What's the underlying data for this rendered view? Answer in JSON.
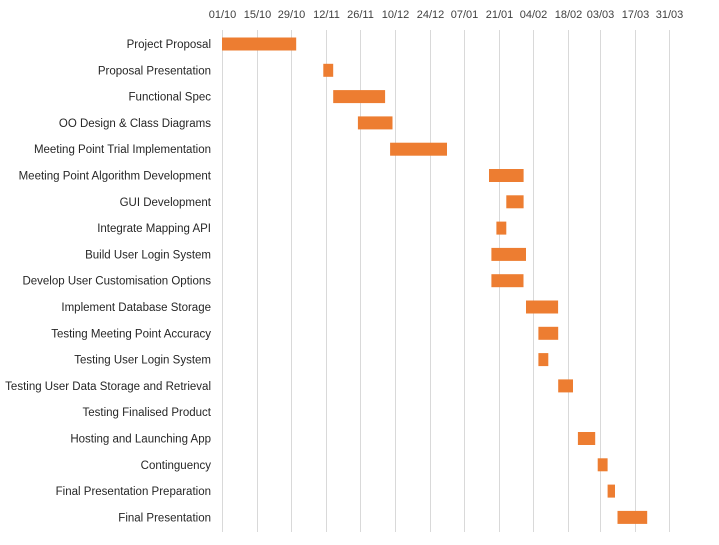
{
  "chart_data": {
    "type": "bar",
    "orientation": "horizontal",
    "subtype": "gantt",
    "title": "",
    "xlabel": "",
    "ylabel": "",
    "x_axis_position": "top",
    "grid": true,
    "legend": "none",
    "bar_color": "#ed7d31",
    "gridline_color": "#d9d9d9",
    "xlim": [
      "2018-10-01",
      "2019-04-14"
    ],
    "x_ticks": [
      "01/10",
      "15/10",
      "29/10",
      "12/11",
      "26/11",
      "10/12",
      "24/12",
      "07/01",
      "21/01",
      "04/02",
      "18/02",
      "03/03",
      "17/03",
      "31/03"
    ],
    "x_tick_dates": [
      "2018-10-01",
      "2018-10-15",
      "2018-10-29",
      "2018-11-12",
      "2018-11-26",
      "2018-12-10",
      "2018-12-24",
      "2019-01-07",
      "2019-01-21",
      "2019-02-04",
      "2019-02-18",
      "2019-03-03",
      "2019-03-17",
      "2019-03-31"
    ],
    "tasks": [
      {
        "name": "Project Proposal",
        "start": "2018-10-01",
        "end": "2018-10-31"
      },
      {
        "name": "Proposal Presentation",
        "start": "2018-11-11",
        "end": "2018-11-15"
      },
      {
        "name": "Functional Spec",
        "start": "2018-11-15",
        "end": "2018-12-06"
      },
      {
        "name": "OO Design & Class Diagrams",
        "start": "2018-11-25",
        "end": "2018-12-09"
      },
      {
        "name": "Meeting Point Trial Implementation",
        "start": "2018-12-08",
        "end": "2018-12-31"
      },
      {
        "name": "Meeting Point Algorithm Development",
        "start": "2019-01-17",
        "end": "2019-01-31"
      },
      {
        "name": "GUI Development",
        "start": "2019-01-24",
        "end": "2019-01-31"
      },
      {
        "name": "Integrate Mapping API",
        "start": "2019-01-20",
        "end": "2019-01-24"
      },
      {
        "name": "Build User Login System",
        "start": "2019-01-18",
        "end": "2019-02-01"
      },
      {
        "name": "Develop User Customisation Options",
        "start": "2019-01-18",
        "end": "2019-01-31"
      },
      {
        "name": "Implement Database Storage",
        "start": "2019-02-01",
        "end": "2019-02-14"
      },
      {
        "name": "Testing Meeting Point Accuracy",
        "start": "2019-02-06",
        "end": "2019-02-14"
      },
      {
        "name": "Testing User Login System",
        "start": "2019-02-06",
        "end": "2019-02-10"
      },
      {
        "name": "Testing User Data Storage and Retrieval",
        "start": "2019-02-14",
        "end": "2019-02-20"
      },
      {
        "name": "Testing Finalised Product",
        "start": "",
        "end": ""
      },
      {
        "name": "Hosting and Launching App",
        "start": "2019-02-22",
        "end": "2019-03-01"
      },
      {
        "name": "Continguency",
        "start": "2019-03-02",
        "end": "2019-03-06"
      },
      {
        "name": "Final Presentation Preparation",
        "start": "2019-03-06",
        "end": "2019-03-09"
      },
      {
        "name": "Final Presentation",
        "start": "2019-03-10",
        "end": "2019-03-22"
      }
    ]
  }
}
